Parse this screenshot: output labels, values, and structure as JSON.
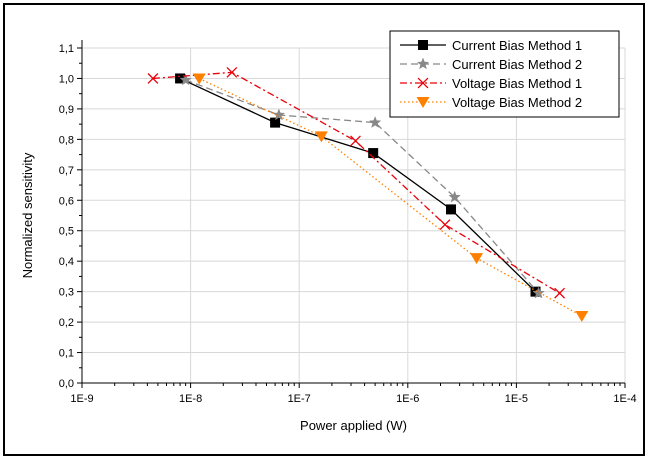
{
  "chart_data": {
    "type": "line",
    "title": "",
    "xlabel": "Power applied (W)",
    "ylabel": "Normalized sensitivity",
    "xscale": "log",
    "xlim": [
      1e-09,
      0.0001
    ],
    "ylim": [
      0.0,
      1.1
    ],
    "x_tick_labels": [
      "1E-9",
      "1E-8",
      "1E-7",
      "1E-6",
      "1E-5",
      "1E-4"
    ],
    "x_tick_values": [
      1e-09,
      1e-08,
      1e-07,
      1e-06,
      1e-05,
      0.0001
    ],
    "y_tick_labels": [
      "0,0",
      "0,1",
      "0,2",
      "0,3",
      "0,4",
      "0,5",
      "0,6",
      "0,7",
      "0,8",
      "0,9",
      "1,0",
      "1,1"
    ],
    "y_tick_values": [
      0.0,
      0.1,
      0.2,
      0.3,
      0.4,
      0.5,
      0.6,
      0.7,
      0.8,
      0.9,
      1.0,
      1.1
    ],
    "grid": true,
    "legend_position": "top-right",
    "series": [
      {
        "name": "Current Bias Method 1",
        "color": "#000000",
        "dash": "solid",
        "marker": "square",
        "x": [
          8e-09,
          6e-08,
          4.8e-07,
          2.5e-06,
          1.5e-05
        ],
        "y": [
          1.0,
          0.855,
          0.755,
          0.57,
          0.3
        ]
      },
      {
        "name": "Current Bias Method 2",
        "color": "#888888",
        "dash": "dashed",
        "marker": "star",
        "x": [
          9e-09,
          6.5e-08,
          5e-07,
          2.7e-06,
          1.6e-05
        ],
        "y": [
          0.995,
          0.88,
          0.855,
          0.61,
          0.295
        ]
      },
      {
        "name": "Voltage Bias Method 1",
        "color": "#e8000b",
        "dash": "dashdot",
        "marker": "x",
        "x": [
          4.5e-09,
          2.4e-08,
          3.3e-07,
          2.2e-06,
          2.5e-05
        ],
        "y": [
          1.0,
          1.02,
          0.795,
          0.52,
          0.295
        ]
      },
      {
        "name": "Voltage Bias Method 2",
        "color": "#ff8000",
        "dash": "dotted",
        "marker": "triangle-down",
        "x": [
          1.2e-08,
          1.6e-07,
          4.3e-06,
          4e-05
        ],
        "y": [
          1.0,
          0.81,
          0.41,
          0.22
        ]
      }
    ]
  }
}
